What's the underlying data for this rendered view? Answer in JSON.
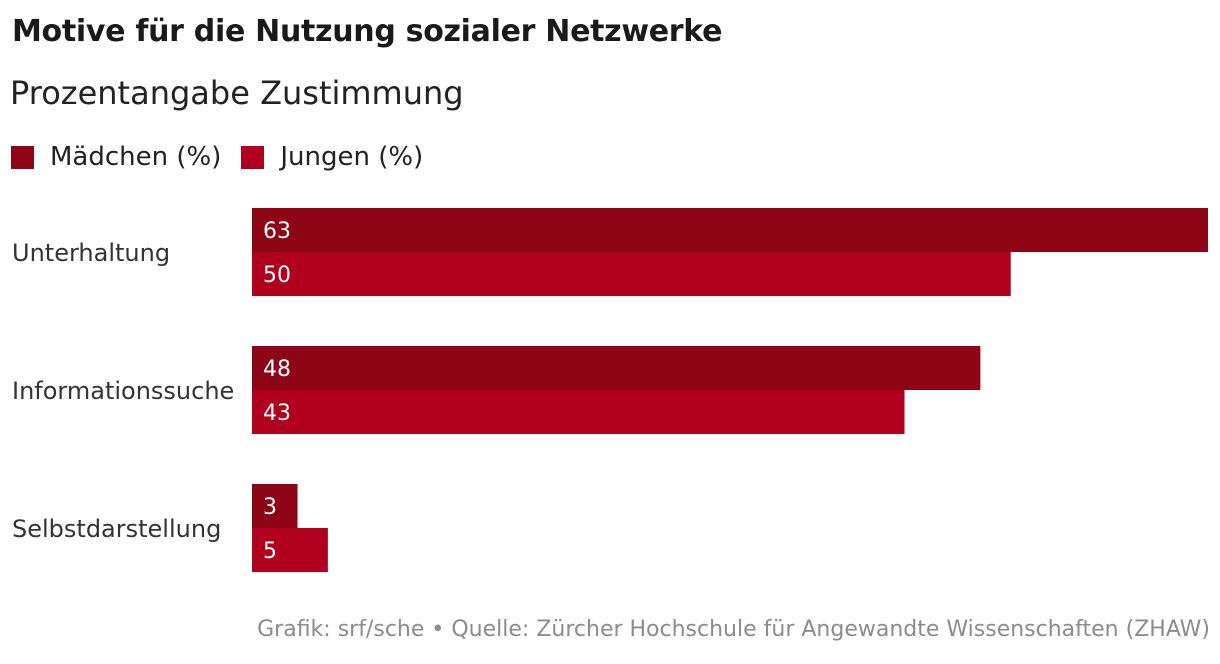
{
  "chart_data": {
    "type": "bar",
    "orientation": "horizontal",
    "title": "Motive für die Nutzung sozialer Netzwerke",
    "subtitle": "Prozentangabe Zustimmung",
    "categories": [
      "Unterhaltung",
      "Informationssuche",
      "Selbstdarstellung"
    ],
    "series": [
      {
        "name": "Mädchen (%)",
        "values": [
          63,
          48,
          3
        ],
        "color": "#8e0615"
      },
      {
        "name": "Jungen (%)",
        "values": [
          50,
          43,
          5
        ],
        "color": "#b0001e"
      }
    ],
    "xlim": [
      0,
      63
    ],
    "grid": false,
    "legend": "top-left",
    "data_labels": "inside-start"
  },
  "footer": {
    "source": "Grafik: srf/sche • Quelle: Zürcher Hochschule für Angewandte Wissenschaften (ZHAW)"
  }
}
